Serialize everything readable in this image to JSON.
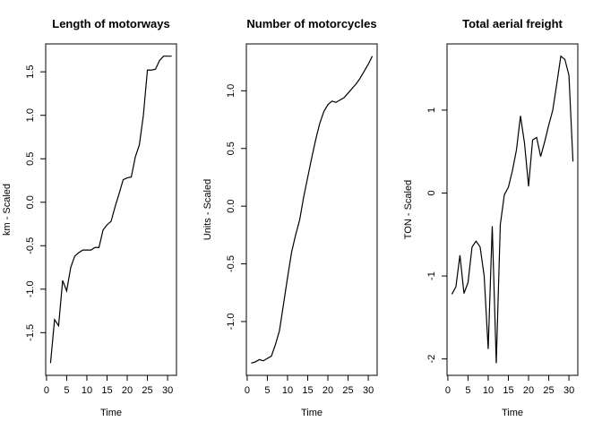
{
  "chart_data": [
    {
      "type": "line",
      "title": "Length of motorways",
      "xlabel": "Time",
      "ylabel": "km - Scaled",
      "xlim": [
        1,
        31
      ],
      "ylim": [
        -1.85,
        1.68
      ],
      "xticks": [
        0,
        5,
        10,
        15,
        20,
        25,
        30
      ],
      "yticks": [
        -1.5,
        -1.0,
        -0.5,
        0.0,
        0.5,
        1.0,
        1.5
      ],
      "x": [
        1,
        2,
        3,
        4,
        5,
        6,
        7,
        8,
        9,
        10,
        11,
        12,
        13,
        14,
        15,
        16,
        17,
        18,
        19,
        20,
        21,
        22,
        23,
        24,
        25,
        26,
        27,
        28,
        29,
        30,
        31
      ],
      "y": [
        -1.85,
        -1.35,
        -1.42,
        -0.9,
        -1.02,
        -0.75,
        -0.62,
        -0.58,
        -0.55,
        -0.55,
        -0.55,
        -0.52,
        -0.52,
        -0.32,
        -0.26,
        -0.22,
        -0.05,
        0.1,
        0.26,
        0.28,
        0.29,
        0.52,
        0.66,
        1.0,
        1.52,
        1.52,
        1.53,
        1.63,
        1.68,
        1.68,
        1.68
      ]
    },
    {
      "type": "line",
      "title": "Number of motorcycles",
      "xlabel": "Time",
      "ylabel": "Units - Scaled",
      "xlim": [
        1,
        31
      ],
      "ylim": [
        -1.36,
        1.3
      ],
      "xticks": [
        0,
        5,
        10,
        15,
        20,
        25,
        30
      ],
      "yticks": [
        -1.0,
        -0.5,
        0.0,
        0.5,
        1.0
      ],
      "x": [
        1,
        2,
        3,
        4,
        5,
        6,
        7,
        8,
        9,
        10,
        11,
        12,
        13,
        14,
        15,
        16,
        17,
        18,
        19,
        20,
        21,
        22,
        23,
        24,
        25,
        26,
        27,
        28,
        29,
        30,
        31
      ],
      "y": [
        -1.36,
        -1.35,
        -1.33,
        -1.34,
        -1.32,
        -1.3,
        -1.2,
        -1.08,
        -0.85,
        -0.62,
        -0.4,
        -0.25,
        -0.12,
        0.08,
        0.25,
        0.42,
        0.58,
        0.72,
        0.82,
        0.88,
        0.91,
        0.9,
        0.92,
        0.94,
        0.98,
        1.02,
        1.06,
        1.11,
        1.17,
        1.23,
        1.3
      ]
    },
    {
      "type": "line",
      "title": "Total aerial freight",
      "xlabel": "Time",
      "ylabel": "TON - Scaled",
      "xlim": [
        1,
        31
      ],
      "ylim": [
        -2.05,
        1.65
      ],
      "xticks": [
        0,
        5,
        10,
        15,
        20,
        25,
        30
      ],
      "yticks": [
        -2,
        -1,
        0,
        1
      ],
      "x": [
        1,
        2,
        3,
        4,
        5,
        6,
        7,
        8,
        9,
        10,
        11,
        12,
        13,
        14,
        15,
        16,
        17,
        18,
        19,
        20,
        21,
        22,
        23,
        24,
        25,
        26,
        27,
        28,
        29,
        30,
        31
      ],
      "y": [
        -1.22,
        -1.13,
        -0.75,
        -1.21,
        -1.08,
        -0.65,
        -0.58,
        -0.65,
        -1.0,
        -1.88,
        -0.4,
        -2.05,
        -0.38,
        -0.02,
        0.07,
        0.27,
        0.52,
        0.93,
        0.6,
        0.08,
        0.64,
        0.67,
        0.44,
        0.62,
        0.82,
        1.0,
        1.32,
        1.65,
        1.61,
        1.42,
        0.38
      ]
    }
  ]
}
